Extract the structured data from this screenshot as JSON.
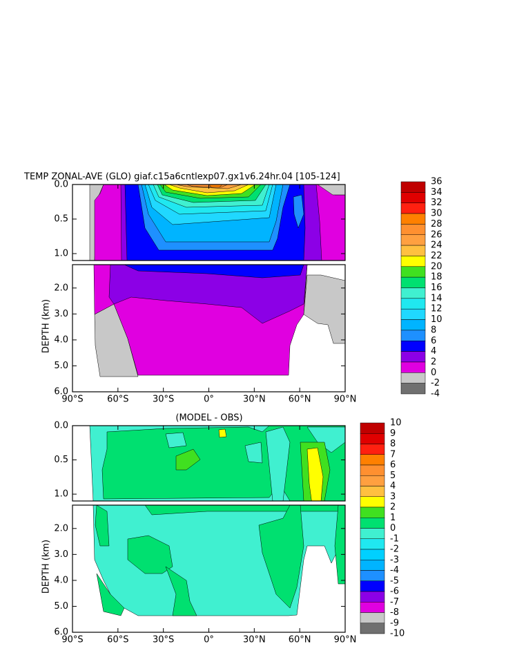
{
  "chart_data": [
    {
      "type": "contour",
      "title": "TEMP ZONAL-AVE (GLO) giaf.c15a6cntlexp07.gx1v6.24hr.04 [105-124]",
      "ylabel": "DEPTH (km)",
      "xlim": [
        -90,
        90
      ],
      "xticks": [
        {
          "value": -90,
          "label": "90°S"
        },
        {
          "value": -60,
          "label": "60°S"
        },
        {
          "value": -30,
          "label": "30°S"
        },
        {
          "value": 0,
          "label": "0°"
        },
        {
          "value": 30,
          "label": "30°N"
        },
        {
          "value": 60,
          "label": "60°N"
        },
        {
          "value": 90,
          "label": "90°N"
        }
      ],
      "panels": [
        {
          "ylim": [
            0,
            1.1
          ],
          "yticks": [
            {
              "value": 0,
              "label": "0.0"
            },
            {
              "value": 0.5,
              "label": "0.5"
            },
            {
              "value": 1,
              "label": "1.0"
            }
          ]
        },
        {
          "ylim": [
            1.1,
            6
          ],
          "yticks": [
            {
              "value": 2,
              "label": "2.0"
            },
            {
              "value": 3,
              "label": "3.0"
            },
            {
              "value": 4,
              "label": "4.0"
            },
            {
              "value": 5,
              "label": "5.0"
            },
            {
              "value": 6,
              "label": "6.0"
            }
          ]
        }
      ],
      "colorbar": {
        "levels": [
          36,
          34,
          32,
          30,
          28,
          26,
          24,
          22,
          20,
          18,
          16,
          14,
          12,
          10,
          8,
          6,
          4,
          2,
          0,
          -2,
          -4
        ],
        "colors": [
          "#c00000",
          "#e00000",
          "#ff2010",
          "#ff8000",
          "#ff9030",
          "#ffa040",
          "#ffc040",
          "#ffff00",
          "#40e020",
          "#00e070",
          "#40f0d0",
          "#20e8f0",
          "#20d8ff",
          "#00b4ff",
          "#1e90ff",
          "#0000ff",
          "#8c00e6",
          "#e000e0",
          "#c8c8c8",
          "#707070"
        ]
      }
    },
    {
      "type": "contour",
      "title": "(MODEL - OBS)",
      "ylabel": "DEPTH (km)",
      "xlim": [
        -90,
        90
      ],
      "xticks": [
        {
          "value": -90,
          "label": "90°S"
        },
        {
          "value": -60,
          "label": "60°S"
        },
        {
          "value": -30,
          "label": "30°S"
        },
        {
          "value": 0,
          "label": "0°"
        },
        {
          "value": 30,
          "label": "30°N"
        },
        {
          "value": 60,
          "label": "60°N"
        },
        {
          "value": 90,
          "label": "90°N"
        }
      ],
      "panels": [
        {
          "ylim": [
            0,
            1.1
          ],
          "yticks": [
            {
              "value": 0,
              "label": "0.0"
            },
            {
              "value": 0.5,
              "label": "0.5"
            },
            {
              "value": 1,
              "label": "1.0"
            }
          ]
        },
        {
          "ylim": [
            1.1,
            6
          ],
          "yticks": [
            {
              "value": 2,
              "label": "2.0"
            },
            {
              "value": 3,
              "label": "3.0"
            },
            {
              "value": 4,
              "label": "4.0"
            },
            {
              "value": 5,
              "label": "5.0"
            },
            {
              "value": 6,
              "label": "6.0"
            }
          ]
        }
      ],
      "colorbar": {
        "levels": [
          10,
          9,
          8,
          7,
          6,
          5,
          4,
          3,
          2,
          1,
          0,
          -1,
          -2,
          -3,
          -4,
          -5,
          -6,
          -7,
          -8,
          -9,
          -10
        ],
        "colors": [
          "#c00000",
          "#e00000",
          "#ff2010",
          "#ff8000",
          "#ff9030",
          "#ffa040",
          "#ffc040",
          "#ffff00",
          "#40e020",
          "#00e070",
          "#40f0d0",
          "#20e8f0",
          "#00d0ff",
          "#00b4ff",
          "#1e90ff",
          "#0000ff",
          "#8c00e6",
          "#e000e0",
          "#c8c8c8",
          "#707070"
        ]
      }
    }
  ]
}
